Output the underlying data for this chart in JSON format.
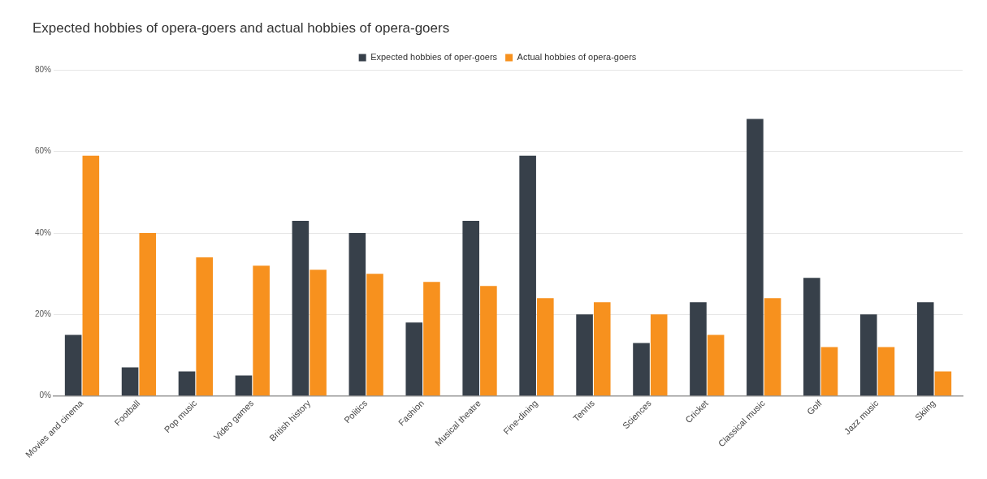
{
  "chart_data": {
    "type": "bar",
    "title": "Expected hobbies of opera-goers and actual hobbies of opera-goers",
    "categories": [
      "Movies and cinema",
      "Football",
      "Pop music",
      "Video games",
      "British history",
      "Politics",
      "Fashion",
      "Musical theatre",
      "Fine-dining",
      "Tennis",
      "Sciences",
      "Cricket",
      "Classical music",
      "Golf",
      "Jazz music",
      "Skiing"
    ],
    "series": [
      {
        "name": "Expected hobbies of oper-goers",
        "color": "#37404a",
        "values": [
          15,
          7,
          6,
          5,
          43,
          40,
          18,
          43,
          59,
          20,
          13,
          23,
          68,
          29,
          20,
          23
        ]
      },
      {
        "name": "Actual hobbies of opera-goers",
        "color": "#f7911e",
        "values": [
          59,
          40,
          34,
          32,
          31,
          30,
          28,
          27,
          24,
          23,
          20,
          15,
          24,
          12,
          12,
          6
        ]
      }
    ],
    "ylim": [
      0,
      80
    ],
    "yticks": [
      {
        "value": 0,
        "label": "0%"
      },
      {
        "value": 20,
        "label": "20%"
      },
      {
        "value": 40,
        "label": "40%"
      },
      {
        "value": 60,
        "label": "60%"
      },
      {
        "value": 80,
        "label": "80%"
      }
    ],
    "grid": "y",
    "legend": "top"
  }
}
